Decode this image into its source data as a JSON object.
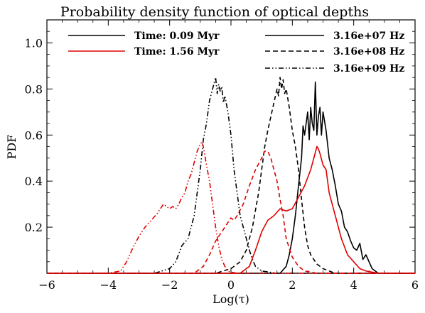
{
  "chart_data": {
    "type": "line",
    "title": "Probability density function of optical depths",
    "xlabel": "Log(τ)",
    "ylabel": "PDF",
    "xlim": [
      -6,
      6
    ],
    "ylim": [
      0,
      1.1
    ],
    "xticks": [
      -6,
      -4,
      -2,
      0,
      2,
      4,
      6
    ],
    "yticks": [
      0.2,
      0.4,
      0.6,
      0.8,
      1.0
    ],
    "xtick_labels": [
      "−6",
      "−4",
      "−2",
      "0",
      "2",
      "4",
      "6"
    ],
    "ytick_labels": [
      "0.2",
      "0.4",
      "0.6",
      "0.8",
      "1.0"
    ],
    "grid": false,
    "legend_time": [
      {
        "label": "Time: 0.09 Myr",
        "color": "#000000"
      },
      {
        "label": "Time: 1.56 Myr",
        "color": "#e00000"
      }
    ],
    "legend_freq": [
      {
        "label": "3.16e+07 Hz",
        "style": "solid"
      },
      {
        "label": "3.16e+08 Hz",
        "style": "dashed"
      },
      {
        "label": "3.16e+09 Hz",
        "style": "dash-dot-dot"
      }
    ],
    "series": [
      {
        "time": "Time: 0.09 Myr",
        "freq": "3.16e+07 Hz",
        "color": "#000000",
        "style": "solid",
        "x": [
          1.6,
          1.8,
          1.9,
          2.0,
          2.1,
          2.2,
          2.3,
          2.35,
          2.4,
          2.5,
          2.55,
          2.6,
          2.65,
          2.7,
          2.75,
          2.8,
          2.85,
          2.9,
          2.95,
          3.0,
          3.1,
          3.2,
          3.3,
          3.4,
          3.5,
          3.6,
          3.7,
          3.8,
          3.9,
          4.0,
          4.1,
          4.2,
          4.3,
          4.4,
          4.6,
          4.8
        ],
        "y": [
          0.0,
          0.03,
          0.08,
          0.15,
          0.25,
          0.38,
          0.5,
          0.64,
          0.6,
          0.7,
          0.58,
          0.72,
          0.65,
          0.62,
          0.83,
          0.6,
          0.68,
          0.72,
          0.6,
          0.7,
          0.62,
          0.5,
          0.45,
          0.38,
          0.3,
          0.27,
          0.2,
          0.18,
          0.14,
          0.11,
          0.1,
          0.13,
          0.06,
          0.08,
          0.02,
          0.0
        ]
      },
      {
        "time": "Time: 0.09 Myr",
        "freq": "3.16e+08 Hz",
        "color": "#000000",
        "style": "dashed",
        "x": [
          -0.5,
          0.0,
          0.3,
          0.5,
          0.7,
          0.9,
          1.0,
          1.1,
          1.2,
          1.3,
          1.4,
          1.5,
          1.55,
          1.6,
          1.65,
          1.7,
          1.75,
          1.8,
          1.9,
          2.0,
          2.1,
          2.2,
          2.3,
          2.4,
          2.5,
          2.6,
          2.8,
          3.0,
          3.2,
          3.4
        ],
        "y": [
          0.0,
          0.02,
          0.05,
          0.1,
          0.2,
          0.35,
          0.45,
          0.55,
          0.62,
          0.68,
          0.74,
          0.8,
          0.77,
          0.85,
          0.8,
          0.84,
          0.78,
          0.8,
          0.72,
          0.62,
          0.55,
          0.45,
          0.32,
          0.2,
          0.12,
          0.08,
          0.04,
          0.02,
          0.01,
          0.0
        ]
      },
      {
        "time": "Time: 0.09 Myr",
        "freq": "3.16e+09 Hz",
        "color": "#000000",
        "style": "dash-dot-dot",
        "x": [
          -2.5,
          -2.0,
          -1.8,
          -1.6,
          -1.4,
          -1.2,
          -1.1,
          -1.0,
          -0.9,
          -0.8,
          -0.7,
          -0.6,
          -0.5,
          -0.45,
          -0.4,
          -0.35,
          -0.3,
          -0.25,
          -0.2,
          -0.1,
          0.0,
          0.1,
          0.2,
          0.3,
          0.4,
          0.5,
          0.6,
          0.7,
          0.8,
          1.0,
          1.5
        ],
        "y": [
          0.0,
          0.02,
          0.05,
          0.12,
          0.15,
          0.25,
          0.35,
          0.45,
          0.58,
          0.65,
          0.75,
          0.8,
          0.85,
          0.78,
          0.82,
          0.79,
          0.81,
          0.74,
          0.77,
          0.7,
          0.6,
          0.45,
          0.35,
          0.25,
          0.2,
          0.15,
          0.1,
          0.06,
          0.03,
          0.01,
          0.0
        ]
      },
      {
        "time": "Time: 1.56 Myr",
        "freq": "3.16e+07 Hz",
        "color": "#e00000",
        "style": "solid",
        "x": [
          0.3,
          0.6,
          0.8,
          1.0,
          1.2,
          1.4,
          1.6,
          1.8,
          2.0,
          2.2,
          2.4,
          2.6,
          2.7,
          2.8,
          2.85,
          2.9,
          3.0,
          3.1,
          3.2,
          3.4,
          3.6,
          3.8,
          4.0,
          4.2,
          4.4,
          4.6,
          4.8
        ],
        "y": [
          0.0,
          0.03,
          0.1,
          0.18,
          0.23,
          0.25,
          0.28,
          0.27,
          0.28,
          0.33,
          0.38,
          0.45,
          0.5,
          0.55,
          0.54,
          0.52,
          0.47,
          0.45,
          0.35,
          0.25,
          0.15,
          0.08,
          0.05,
          0.02,
          0.01,
          0.005,
          0.0
        ]
      },
      {
        "time": "Time: 1.56 Myr",
        "freq": "3.16e+08 Hz",
        "color": "#e00000",
        "style": "dashed",
        "x": [
          -1.2,
          -0.9,
          -0.7,
          -0.5,
          -0.3,
          -0.1,
          0.0,
          0.1,
          0.2,
          0.4,
          0.6,
          0.8,
          1.0,
          1.1,
          1.2,
          1.3,
          1.4,
          1.5,
          1.6,
          1.7,
          1.8,
          2.0,
          2.2,
          2.4,
          2.8
        ],
        "y": [
          0.0,
          0.03,
          0.08,
          0.14,
          0.18,
          0.22,
          0.24,
          0.23,
          0.25,
          0.3,
          0.38,
          0.45,
          0.5,
          0.53,
          0.53,
          0.5,
          0.45,
          0.4,
          0.32,
          0.25,
          0.15,
          0.07,
          0.03,
          0.01,
          0.0
        ]
      },
      {
        "time": "Time: 1.56 Myr",
        "freq": "3.16e+09 Hz",
        "color": "#e00000",
        "style": "dash-dot-dot",
        "x": [
          -4.0,
          -3.6,
          -3.4,
          -3.2,
          -3.0,
          -2.8,
          -2.6,
          -2.4,
          -2.3,
          -2.2,
          -2.1,
          -2.0,
          -1.9,
          -1.8,
          -1.7,
          -1.6,
          -1.5,
          -1.4,
          -1.3,
          -1.2,
          -1.1,
          -1.0,
          -0.95,
          -0.9,
          -0.8,
          -0.7,
          -0.6,
          -0.5,
          -0.4,
          -0.3,
          -0.2,
          -0.1,
          0.0,
          0.2,
          0.4
        ],
        "y": [
          0.0,
          0.01,
          0.05,
          0.11,
          0.16,
          0.2,
          0.23,
          0.26,
          0.28,
          0.3,
          0.29,
          0.28,
          0.29,
          0.28,
          0.3,
          0.33,
          0.35,
          0.4,
          0.43,
          0.48,
          0.53,
          0.56,
          0.57,
          0.55,
          0.47,
          0.4,
          0.3,
          0.2,
          0.12,
          0.06,
          0.03,
          0.01,
          0.005,
          0.0,
          0.0
        ]
      },
      {
        "time": "Time: 1.56 Myr",
        "freq": "3.16e+08 Hz",
        "color": "#e00000",
        "style": "dash-dot-dot-extra",
        "x": [],
        "y": []
      }
    ]
  }
}
